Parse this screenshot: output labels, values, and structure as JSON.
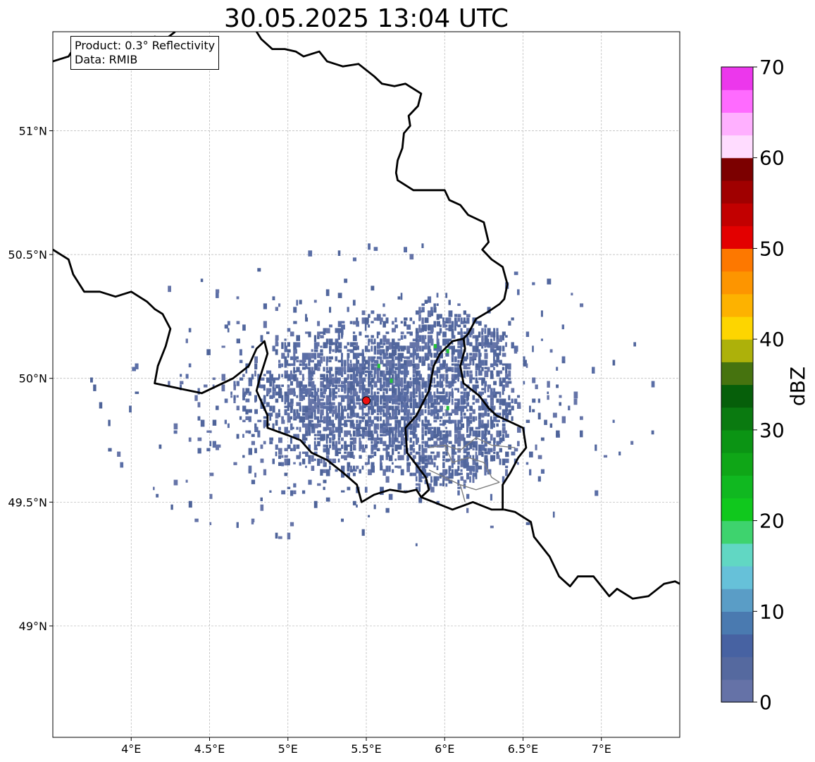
{
  "title": "30.05.2025 13:04 UTC",
  "info": {
    "product": "Product: 0.3° Reflectivity",
    "data": "Data: RMIB"
  },
  "colorbar": {
    "label": "dBZ",
    "min": 0,
    "max": 70,
    "step": 2.5,
    "ticks": [
      "0",
      "10",
      "20",
      "30",
      "40",
      "50",
      "60",
      "70"
    ],
    "colors": [
      "#6572a7",
      "#55699f",
      "#4762a2",
      "#4a7ab0",
      "#5a9dc6",
      "#66c1d9",
      "#61d7c3",
      "#3ed36e",
      "#10c81d",
      "#10b820",
      "#0fa617",
      "#0b9414",
      "#0a7a10",
      "#065f0a",
      "#46730f",
      "#adb10a",
      "#fdd500",
      "#fdb200",
      "#fd9500",
      "#fd7800",
      "#e30000",
      "#c20000",
      "#a00000",
      "#7c0000",
      "#ffdcff",
      "#ffb0ff",
      "#ff6bff",
      "#ec37ec"
    ]
  },
  "chart_data": {
    "type": "heatmap",
    "title": "30.05.2025 13:04 UTC",
    "xlabel": "",
    "ylabel": "",
    "xlim": [
      3.5,
      7.5
    ],
    "ylim": [
      48.55,
      51.4
    ],
    "x_ticks": [
      "4°E",
      "4.5°E",
      "5°E",
      "5.5°E",
      "6°E",
      "6.5°E",
      "7°E"
    ],
    "x_tick_values": [
      4.0,
      4.5,
      5.0,
      5.5,
      6.0,
      6.5,
      7.0
    ],
    "y_ticks": [
      "49°N",
      "49.5°N",
      "50°N",
      "50.5°N",
      "51°N"
    ],
    "y_tick_values": [
      49.0,
      49.5,
      50.0,
      50.5,
      51.0
    ],
    "grid": true,
    "colorbar_label": "dBZ",
    "radar_site": {
      "lon": 5.5,
      "lat": 49.91
    },
    "echo_field": {
      "dominant_reflectivity_dbz": 2,
      "center_lon": 5.55,
      "center_lat": 49.92,
      "radius_lon": 0.8,
      "radius_lat": 0.28,
      "scattered_extent_lon": [
        3.9,
        6.8
      ],
      "scattered_extent_lat": [
        49.15,
        50.45
      ]
    },
    "green_echoes": [
      {
        "lon": 5.58,
        "lat": 50.05
      },
      {
        "lon": 5.66,
        "lat": 49.99
      },
      {
        "lon": 5.94,
        "lat": 50.13
      },
      {
        "lon": 6.02,
        "lat": 50.11
      },
      {
        "lon": 6.02,
        "lat": 49.88
      }
    ],
    "borders": [
      [
        [
          3.5,
          51.28
        ],
        [
          3.6,
          51.3
        ],
        [
          3.65,
          51.35
        ],
        [
          3.72,
          51.32
        ],
        [
          3.8,
          51.29
        ],
        [
          3.85,
          51.26
        ],
        [
          3.92,
          51.25
        ],
        [
          4.0,
          51.3
        ],
        [
          4.05,
          51.35
        ],
        [
          4.1,
          51.33
        ],
        [
          4.15,
          51.38
        ],
        [
          4.22,
          51.37
        ],
        [
          4.28,
          51.4
        ]
      ],
      [
        [
          4.8,
          51.4
        ],
        [
          4.83,
          51.37
        ],
        [
          4.9,
          51.33
        ],
        [
          4.98,
          51.33
        ],
        [
          5.05,
          51.32
        ],
        [
          5.1,
          51.3
        ],
        [
          5.2,
          51.32
        ],
        [
          5.25,
          51.28
        ],
        [
          5.35,
          51.26
        ],
        [
          5.45,
          51.27
        ],
        [
          5.55,
          51.22
        ],
        [
          5.6,
          51.19
        ],
        [
          5.68,
          51.18
        ],
        [
          5.75,
          51.19
        ],
        [
          5.85,
          51.15
        ],
        [
          5.83,
          51.1
        ],
        [
          5.77,
          51.06
        ],
        [
          5.78,
          51.02
        ],
        [
          5.74,
          50.99
        ],
        [
          5.73,
          50.93
        ],
        [
          5.7,
          50.88
        ],
        [
          5.69,
          50.83
        ],
        [
          5.7,
          50.8
        ],
        [
          5.8,
          50.76
        ],
        [
          5.9,
          50.76
        ],
        [
          6.0,
          50.76
        ],
        [
          6.03,
          50.72
        ],
        [
          6.1,
          50.7
        ],
        [
          6.15,
          50.66
        ],
        [
          6.25,
          50.63
        ],
        [
          6.28,
          50.55
        ],
        [
          6.24,
          50.52
        ],
        [
          6.3,
          50.48
        ],
        [
          6.37,
          50.45
        ],
        [
          6.4,
          50.38
        ],
        [
          6.38,
          50.32
        ],
        [
          6.35,
          50.3
        ],
        [
          6.28,
          50.27
        ],
        [
          6.2,
          50.24
        ],
        [
          6.15,
          50.18
        ],
        [
          6.12,
          50.16
        ]
      ],
      [
        [
          7.5,
          49.17
        ],
        [
          7.47,
          49.18
        ],
        [
          7.4,
          49.17
        ],
        [
          7.3,
          49.12
        ],
        [
          7.2,
          49.11
        ],
        [
          7.1,
          49.15
        ],
        [
          7.05,
          49.12
        ],
        [
          6.95,
          49.2
        ],
        [
          6.85,
          49.2
        ],
        [
          6.8,
          49.16
        ],
        [
          6.73,
          49.2
        ],
        [
          6.67,
          49.28
        ],
        [
          6.57,
          49.36
        ],
        [
          6.55,
          49.42
        ],
        [
          6.45,
          49.46
        ],
        [
          6.38,
          49.47
        ]
      ],
      [
        [
          3.5,
          50.52
        ],
        [
          3.6,
          50.48
        ],
        [
          3.63,
          50.42
        ],
        [
          3.7,
          50.35
        ],
        [
          3.8,
          50.35
        ],
        [
          3.9,
          50.33
        ],
        [
          4.0,
          50.35
        ],
        [
          4.1,
          50.31
        ],
        [
          4.15,
          50.28
        ],
        [
          4.2,
          50.26
        ],
        [
          4.25,
          50.2
        ],
        [
          4.22,
          50.13
        ],
        [
          4.17,
          50.05
        ],
        [
          4.15,
          49.98
        ],
        [
          4.3,
          49.96
        ],
        [
          4.45,
          49.94
        ],
        [
          4.55,
          49.97
        ],
        [
          4.65,
          50.0
        ],
        [
          4.75,
          50.05
        ],
        [
          4.8,
          50.12
        ],
        [
          4.85,
          50.15
        ],
        [
          4.87,
          50.1
        ],
        [
          4.82,
          50.0
        ],
        [
          4.8,
          49.95
        ],
        [
          4.87,
          49.85
        ],
        [
          4.87,
          49.8
        ],
        [
          5.0,
          49.77
        ],
        [
          5.08,
          49.75
        ],
        [
          5.15,
          49.7
        ],
        [
          5.25,
          49.67
        ],
        [
          5.35,
          49.62
        ],
        [
          5.44,
          49.57
        ],
        [
          5.47,
          49.5
        ],
        [
          5.55,
          49.53
        ],
        [
          5.65,
          49.55
        ],
        [
          5.75,
          49.54
        ],
        [
          5.82,
          49.55
        ],
        [
          5.85,
          49.52
        ],
        [
          5.93,
          49.5
        ],
        [
          6.05,
          49.47
        ],
        [
          6.18,
          49.5
        ],
        [
          6.3,
          49.47
        ],
        [
          6.38,
          49.47
        ]
      ],
      [
        [
          6.12,
          50.16
        ],
        [
          6.05,
          50.15
        ],
        [
          5.97,
          50.1
        ],
        [
          5.93,
          50.05
        ],
        [
          5.9,
          49.95
        ],
        [
          5.82,
          49.85
        ],
        [
          5.75,
          49.8
        ],
        [
          5.76,
          49.7
        ],
        [
          5.82,
          49.65
        ],
        [
          5.88,
          49.6
        ],
        [
          5.9,
          49.55
        ],
        [
          5.85,
          49.52
        ]
      ],
      [
        [
          6.12,
          50.16
        ],
        [
          6.13,
          50.12
        ],
        [
          6.1,
          50.05
        ],
        [
          6.12,
          49.98
        ],
        [
          6.22,
          49.93
        ],
        [
          6.28,
          49.88
        ],
        [
          6.33,
          49.85
        ],
        [
          6.5,
          49.8
        ],
        [
          6.52,
          49.72
        ],
        [
          6.47,
          49.68
        ],
        [
          6.42,
          49.62
        ],
        [
          6.37,
          49.57
        ],
        [
          6.37,
          49.47
        ]
      ]
    ],
    "internal_boundaries": [
      [
        [
          5.9,
          49.72
        ],
        [
          6.0,
          49.73
        ],
        [
          6.1,
          49.71
        ],
        [
          6.2,
          49.76
        ],
        [
          6.3,
          49.73
        ],
        [
          6.45,
          49.72
        ]
      ],
      [
        [
          6.0,
          49.73
        ],
        [
          6.05,
          49.66
        ],
        [
          6.15,
          49.68
        ],
        [
          6.25,
          49.66
        ],
        [
          6.3,
          49.6
        ],
        [
          6.35,
          49.58
        ]
      ],
      [
        [
          5.9,
          49.63
        ],
        [
          6.0,
          49.6
        ],
        [
          6.1,
          49.57
        ],
        [
          6.2,
          49.55
        ],
        [
          6.35,
          49.58
        ]
      ],
      [
        [
          6.1,
          49.57
        ],
        [
          6.13,
          49.5
        ]
      ]
    ]
  }
}
